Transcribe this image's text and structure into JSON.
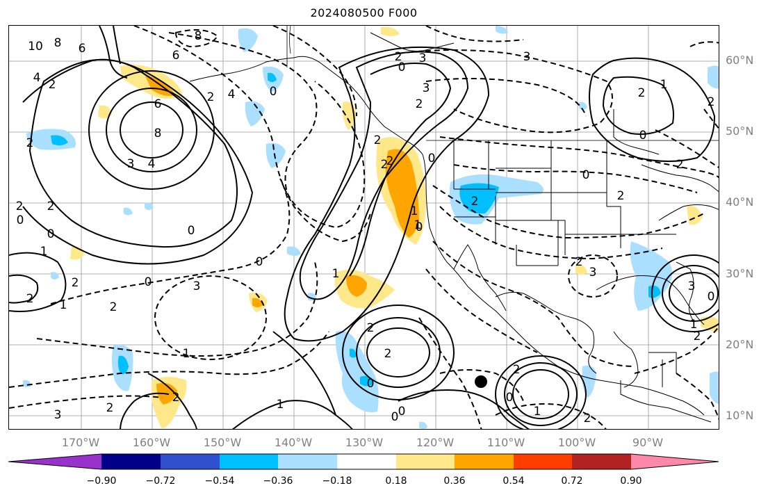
{
  "title": "2024080500 F000",
  "map": {
    "lat_labels": [
      "60°N",
      "50°N",
      "40°N",
      "30°N",
      "20°N",
      "10°N"
    ],
    "lon_labels": [
      "170°W",
      "160°W",
      "150°W",
      "140°W",
      "130°W",
      "120°W",
      "110°W",
      "100°W",
      "90°W"
    ],
    "contour_labels": [
      "10",
      "8",
      "6",
      "4",
      "2",
      "6",
      "8",
      "3",
      "4",
      "2",
      "0",
      "8",
      "6",
      "4",
      "2",
      "0",
      "2",
      "3",
      "0",
      "2",
      "2",
      "2",
      "0",
      "1",
      "2",
      "2",
      "0",
      "0",
      "1",
      "2",
      "3",
      "2",
      "1",
      "2",
      "2",
      "0",
      "1",
      "2",
      "0",
      "1",
      "2",
      "0",
      "3",
      "3",
      "2",
      "2",
      "0",
      "2",
      "1",
      "0",
      "2",
      "2",
      "3",
      "2",
      "0",
      "0",
      "1",
      "2",
      "0",
      "3",
      "1",
      "2",
      "2",
      "1",
      "1",
      "0",
      "2",
      "3",
      "0",
      "2"
    ],
    "marker": "storm-center"
  },
  "colorbar": {
    "colors": [
      "#9932cc",
      "#00008b",
      "#3050d0",
      "#00bfff",
      "#aadfff",
      "#ffffff",
      "#ffe88a",
      "#ffa500",
      "#ff3d00",
      "#b22222",
      "#ff88aa"
    ],
    "labels": [
      "−0.90",
      "−0.72",
      "−0.54",
      "−0.36",
      "−0.18",
      "0.18",
      "0.36",
      "0.54",
      "0.72",
      "0.90"
    ]
  }
}
